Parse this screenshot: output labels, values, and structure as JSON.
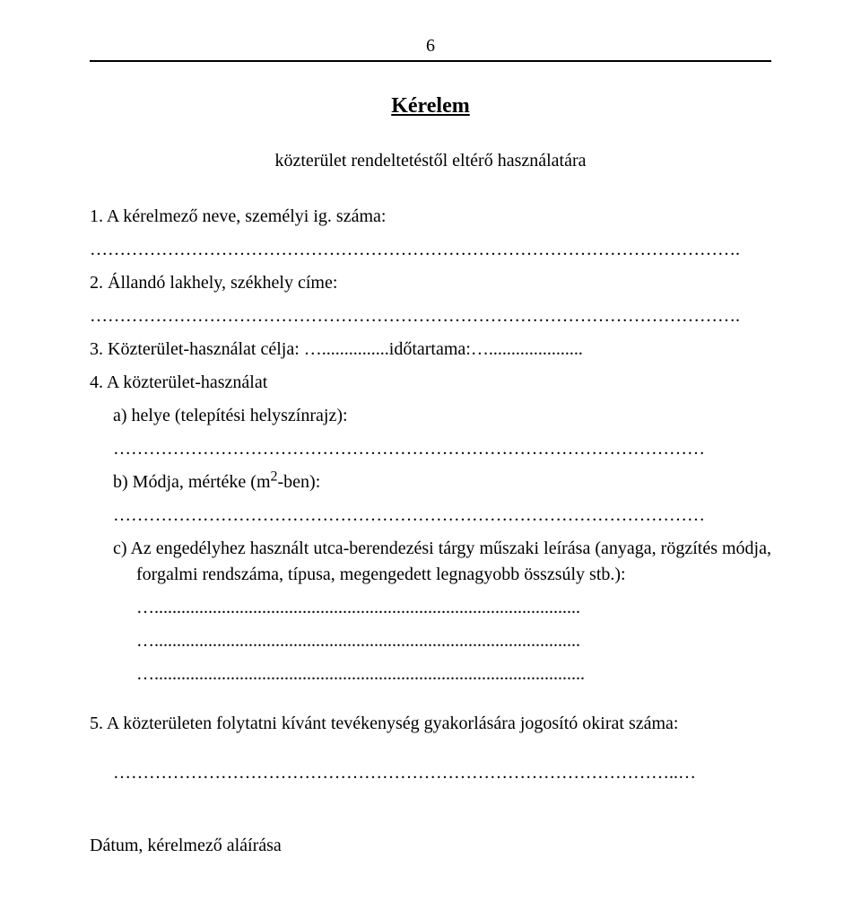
{
  "page_number": "6",
  "title": "Kérelem",
  "subtitle": "közterület rendeltetéstől eltérő használatára",
  "items": {
    "i1": "1. A kérelmező neve, személyi ig. száma:",
    "dots1": "……………………………………………………………………………………………….",
    "i2": "2. Állandó lakhely, székhely címe:",
    "dots2": "……………………………………………………………………………………………….",
    "i3": "3. Közterület-használat célja: …...............időtartama:….....................",
    "i4": "4. A közterület-használat",
    "i4a": "a) helye (telepítési helyszínrajz):",
    "i4a_dots": "………………………………………………………………………………………",
    "i4b_pre": "b) Módja, mértéke (m",
    "i4b_sup": "2",
    "i4b_post": "-ben):",
    "i4b_dots": "………………………………………………………………………………………",
    "i4c": "c)  Az  engedélyhez  használt  utca-berendezési  tárgy  műszaki  leírása  (anyaga,  rögzítés módja, forgalmi rendszáma, típusa, megengedett legnagyobb összsúly stb.):",
    "i4c_dots1": "…...............................................................................................",
    "i4c_dots2": "…...............................................................................................",
    "i4c_dots3": "…................................................................................................",
    "i5": "5. A közterületen folytatni kívánt tevékenység gyakorlására jogosító okirat száma:",
    "i5_dots": "…………………………………………………………………………………..…",
    "footer": "Dátum, kérelmező aláírása"
  }
}
